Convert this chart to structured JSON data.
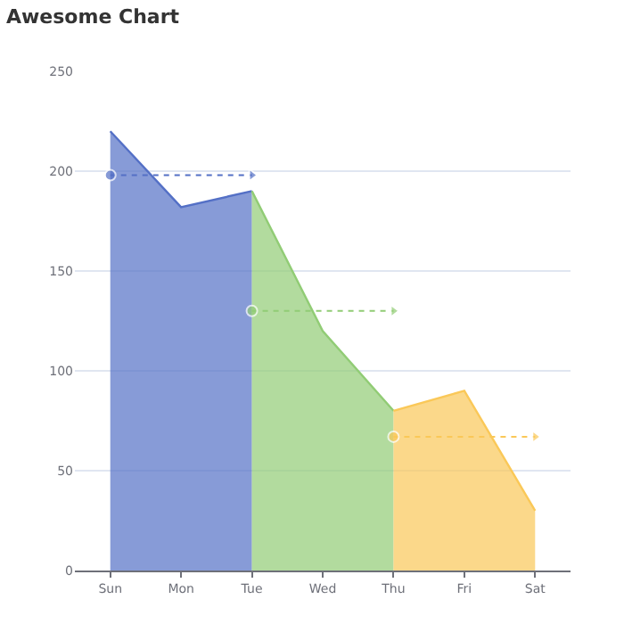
{
  "chart_data": {
    "type": "area",
    "title": "Awesome Chart",
    "categories": [
      "Sun",
      "Mon",
      "Tue",
      "Wed",
      "Thu",
      "Fri",
      "Sat"
    ],
    "series": [
      {
        "color": "#5470c6",
        "values": [
          220,
          182,
          190,
          null,
          null,
          null,
          null
        ]
      },
      {
        "color": "#91cc75",
        "values": [
          null,
          null,
          190,
          120,
          80,
          null,
          null
        ]
      },
      {
        "color": "#fac858",
        "values": [
          null,
          null,
          null,
          null,
          80,
          90,
          30
        ]
      },
      {
        "type": "line",
        "line_style": "dashed",
        "color": "#5470c6",
        "values": [
          198,
          198,
          198,
          null,
          null,
          null,
          null
        ]
      },
      {
        "type": "line",
        "line_style": "dashed",
        "color": "#91cc75",
        "values": [
          null,
          null,
          130,
          130,
          130,
          null,
          null
        ]
      },
      {
        "type": "line",
        "line_style": "dashed",
        "color": "#fac858",
        "values": [
          null,
          null,
          null,
          null,
          67,
          67,
          67
        ]
      }
    ],
    "ylim": [
      0,
      250
    ],
    "yticks": [
      0,
      50,
      100,
      150,
      200,
      250
    ],
    "grid": "y"
  }
}
